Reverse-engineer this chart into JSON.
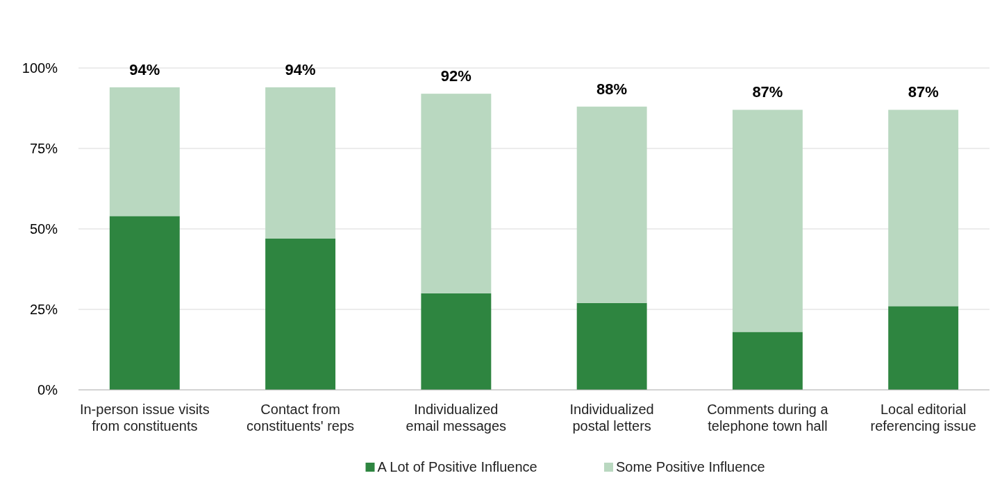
{
  "chart_data": {
    "type": "bar",
    "stacked": true,
    "categories": [
      "In-person issue visits\nfrom constituents",
      "Contact from\nconstituents' reps",
      "Individualized\nemail messages",
      "Individualized\npostal letters",
      "Comments during a\ntelephone town hall",
      "Local editorial\nreferencing issue"
    ],
    "series": [
      {
        "name": "A Lot of Positive Influence",
        "color": "#2e8540",
        "values": [
          54,
          47,
          30,
          27,
          18,
          26
        ]
      },
      {
        "name": "Some Positive Influence",
        "color": "#b9d8c0",
        "values": [
          40,
          47,
          62,
          61,
          69,
          61
        ]
      }
    ],
    "totals": [
      "94%",
      "94%",
      "92%",
      "88%",
      "87%",
      "87%"
    ],
    "ylim": [
      0,
      100
    ],
    "yticks": [
      {
        "value": 0,
        "label": "0%"
      },
      {
        "value": 25,
        "label": "25%"
      },
      {
        "value": 50,
        "label": "50%"
      },
      {
        "value": 75,
        "label": "75%"
      },
      {
        "value": 100,
        "label": "100%"
      }
    ],
    "grid": "y",
    "legend": "bottom"
  }
}
